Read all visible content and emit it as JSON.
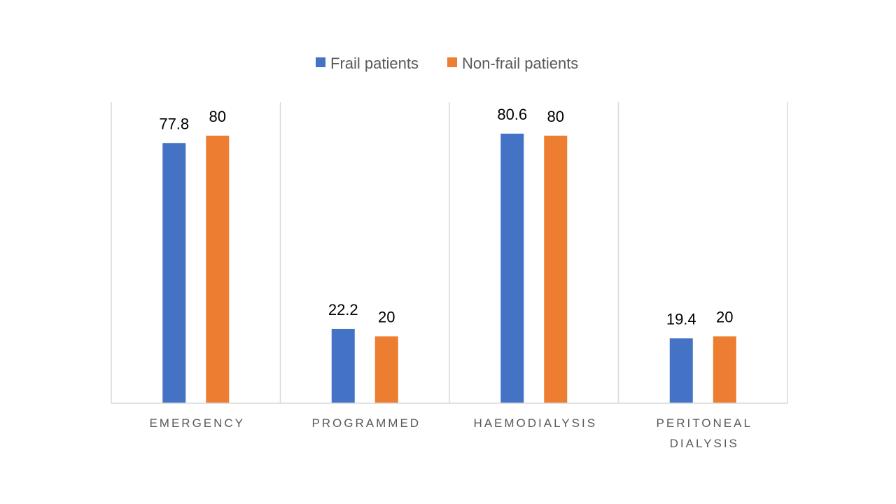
{
  "chart_data": {
    "type": "bar",
    "categories": [
      [
        "EMERGENCY"
      ],
      [
        "PROGRAMMED"
      ],
      [
        "HAEMODIALYSIS"
      ],
      [
        "PERITONEAL",
        "DIALYSIS"
      ]
    ],
    "series": [
      {
        "name": "Frail patients",
        "color": "#4472C4",
        "values": [
          77.8,
          22.2,
          80.6,
          19.4
        ]
      },
      {
        "name": "Non-frail patients",
        "color": "#ED7D31",
        "values": [
          80,
          20,
          80,
          20
        ]
      }
    ],
    "value_labels": [
      [
        "77.8",
        "22.2",
        "80.6",
        "19.4"
      ],
      [
        "80",
        "20",
        "80",
        "20"
      ]
    ],
    "ylim": [
      0,
      90
    ],
    "legend_position": "top-center",
    "grid": "vertical category separators",
    "title": "",
    "xlabel": "",
    "ylabel": ""
  }
}
